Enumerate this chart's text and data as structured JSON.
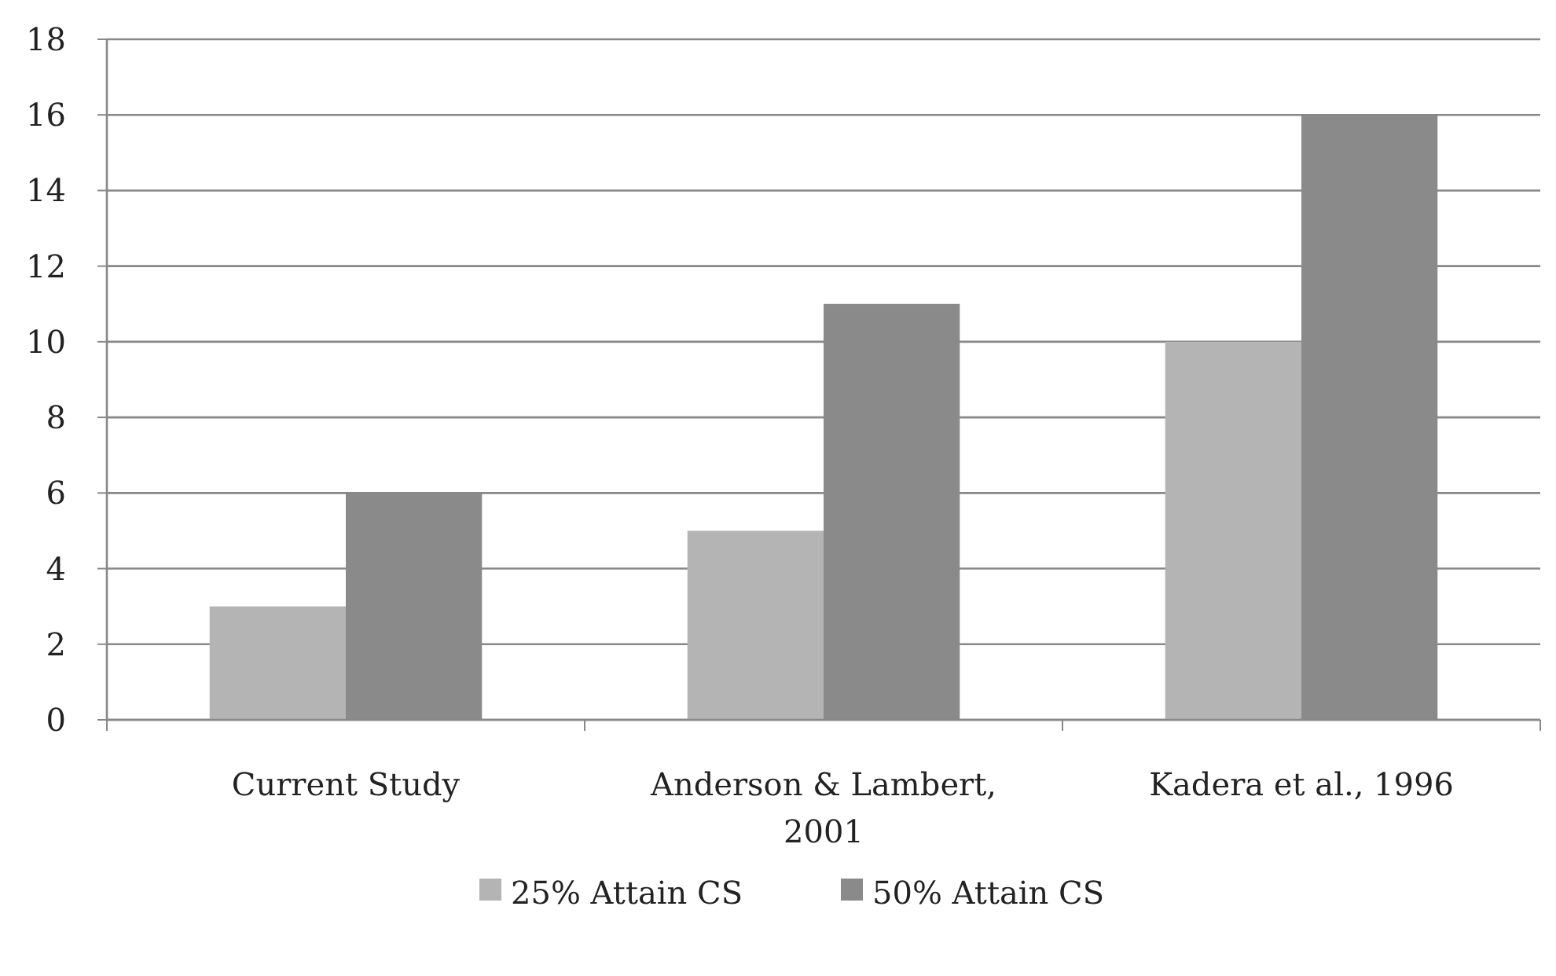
{
  "chart_data": {
    "type": "bar",
    "categories": [
      "Current Study",
      "Anderson & Lambert, 2001",
      "Kadera et al., 1996"
    ],
    "series": [
      {
        "name": "25% Attain CS",
        "color": "#b4b4b4",
        "values": [
          3,
          5,
          10
        ]
      },
      {
        "name": "50% Attain CS",
        "color": "#8a8a8a",
        "values": [
          6,
          11,
          16
        ]
      }
    ],
    "ylim": [
      0,
      18
    ],
    "yticks": [
      0,
      2,
      4,
      6,
      8,
      10,
      12,
      14,
      16,
      18
    ],
    "grid": "y",
    "legend": "bottom"
  }
}
